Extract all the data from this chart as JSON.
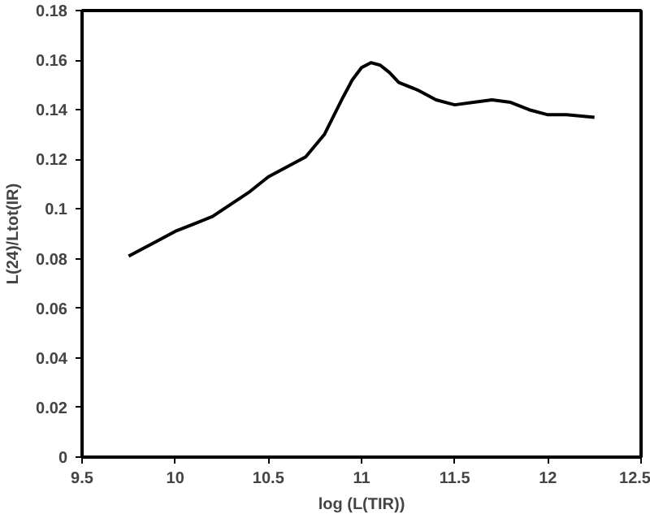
{
  "chart_data": {
    "type": "line",
    "xlabel": "log (L(TIR))",
    "ylabel": "L(24)/Ltot(IR)",
    "x": [
      9.75,
      9.9,
      10.0,
      10.1,
      10.2,
      10.3,
      10.4,
      10.5,
      10.6,
      10.7,
      10.8,
      10.9,
      10.95,
      11.0,
      11.05,
      11.1,
      11.15,
      11.2,
      11.3,
      11.4,
      11.5,
      11.6,
      11.7,
      11.8,
      11.9,
      12.0,
      12.1,
      12.25
    ],
    "series": [
      {
        "color": "#000000",
        "values": [
          0.081,
          0.087,
          0.091,
          0.094,
          0.097,
          0.102,
          0.107,
          0.113,
          0.117,
          0.121,
          0.13,
          0.145,
          0.152,
          0.157,
          0.159,
          0.158,
          0.155,
          0.151,
          0.148,
          0.144,
          0.142,
          0.143,
          0.144,
          0.143,
          0.14,
          0.138,
          0.138,
          0.137
        ]
      }
    ],
    "xlim": [
      9.5,
      12.5
    ],
    "xticks": [
      9.5,
      10,
      10.5,
      11,
      11.5,
      12,
      12.5
    ],
    "ylim": [
      0,
      0.18
    ],
    "yticks": [
      0,
      0.02,
      0.04,
      0.06,
      0.08,
      0.1,
      0.12,
      0.14,
      0.16,
      0.18
    ],
    "grid": false,
    "marker": "none",
    "line_style": "solid"
  }
}
